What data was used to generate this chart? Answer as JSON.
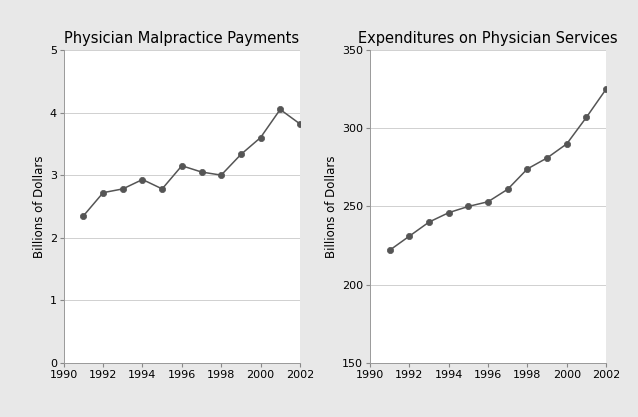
{
  "left_title": "Physician Malpractice Payments",
  "right_title": "Expenditures on Physician Services",
  "ylabel": "Billions of Dollars",
  "left_years": [
    1991,
    1992,
    1993,
    1994,
    1995,
    1996,
    1997,
    1998,
    1999,
    2000,
    2001,
    2002
  ],
  "left_values": [
    2.35,
    2.72,
    2.78,
    2.93,
    2.78,
    3.15,
    3.05,
    3.0,
    3.33,
    3.6,
    4.05,
    3.82
  ],
  "left_ylim": [
    0,
    5
  ],
  "left_yticks": [
    0,
    1,
    2,
    3,
    4,
    5
  ],
  "left_xlim": [
    1990,
    2002
  ],
  "left_xticks": [
    1990,
    1992,
    1994,
    1996,
    1998,
    2000,
    2002
  ],
  "right_years": [
    1991,
    1992,
    1993,
    1994,
    1995,
    1996,
    1997,
    1998,
    1999,
    2000,
    2001,
    2002
  ],
  "right_values": [
    222,
    231,
    240,
    246,
    250,
    253,
    261,
    274,
    281,
    290,
    307,
    325
  ],
  "right_ylim": [
    150,
    350
  ],
  "right_yticks": [
    150,
    200,
    250,
    300,
    350
  ],
  "right_xlim": [
    1990,
    2002
  ],
  "right_xticks": [
    1990,
    1992,
    1994,
    1996,
    1998,
    2000,
    2002
  ],
  "line_color": "#555555",
  "marker": "o",
  "marker_size": 4.5,
  "fig_bg_color": "#e8e8e8",
  "plot_bg_color": "#ffffff",
  "grid_color": "#d0d0d0",
  "title_fontsize": 10.5,
  "label_fontsize": 8.5,
  "tick_fontsize": 8
}
